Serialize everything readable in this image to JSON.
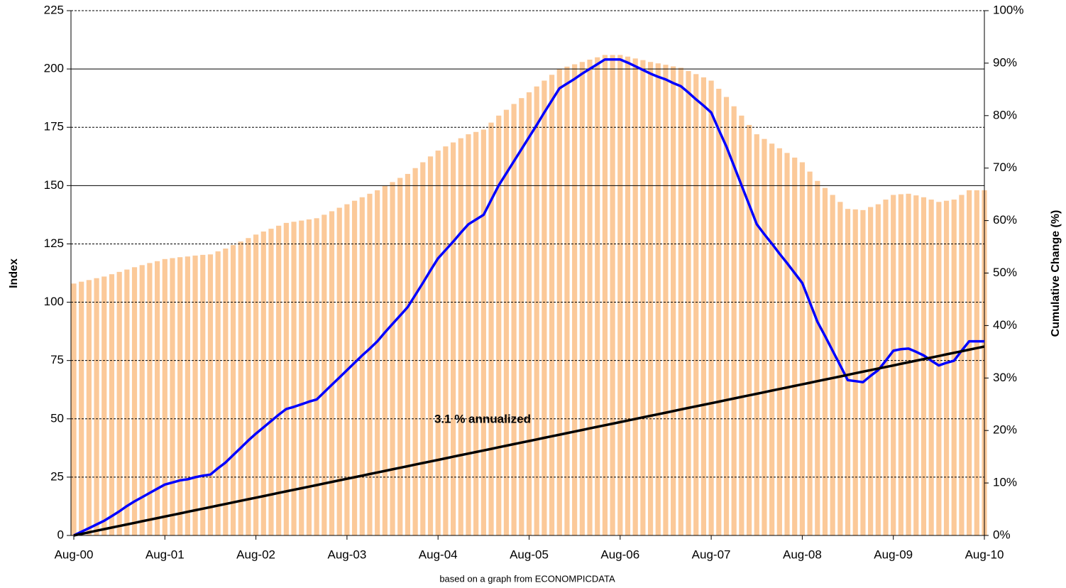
{
  "chart_data": {
    "type": "bar",
    "y_label": "Index",
    "y2_label": "Cumulative Change (%)",
    "note": "based on a graph from ECONOMPICDATA",
    "annotation": "3.1 % annualized",
    "categories": [
      "Aug-00",
      null,
      null,
      null,
      null,
      null,
      null,
      null,
      null,
      null,
      null,
      null,
      "Aug-01",
      null,
      null,
      null,
      null,
      null,
      null,
      null,
      null,
      null,
      null,
      null,
      "Aug-02",
      null,
      null,
      null,
      null,
      null,
      null,
      null,
      null,
      null,
      null,
      null,
      "Aug-03",
      null,
      null,
      null,
      null,
      null,
      null,
      null,
      null,
      null,
      null,
      null,
      "Aug-04",
      null,
      null,
      null,
      null,
      null,
      null,
      null,
      null,
      null,
      null,
      null,
      "Aug-05",
      null,
      null,
      null,
      null,
      null,
      null,
      null,
      null,
      null,
      null,
      null,
      "Aug-06",
      null,
      null,
      null,
      null,
      null,
      null,
      null,
      null,
      null,
      null,
      null,
      "Aug-07",
      null,
      null,
      null,
      null,
      null,
      null,
      null,
      null,
      null,
      null,
      null,
      "Aug-08",
      null,
      null,
      null,
      null,
      null,
      null,
      null,
      null,
      null,
      null,
      null,
      "Aug-09",
      null,
      null,
      null,
      null,
      null,
      null,
      null,
      null,
      null,
      null,
      null,
      "Aug-10"
    ],
    "ylim": [
      0,
      225
    ],
    "yticks": [
      0,
      25,
      50,
      75,
      100,
      125,
      150,
      175,
      200,
      225
    ],
    "y2lim": [
      0,
      100
    ],
    "y2ticks": [
      {
        "value": 0,
        "label": "0%"
      },
      {
        "value": 10,
        "label": "10%"
      },
      {
        "value": 20,
        "label": "20%"
      },
      {
        "value": 30,
        "label": "30%"
      },
      {
        "value": 40,
        "label": "40%"
      },
      {
        "value": 50,
        "label": "50%"
      },
      {
        "value": 60,
        "label": "60%"
      },
      {
        "value": 70,
        "label": "70%"
      },
      {
        "value": 80,
        "label": "80%"
      },
      {
        "value": 90,
        "label": "90%"
      },
      {
        "value": 100,
        "label": "100%"
      }
    ],
    "grid": true,
    "series": [
      {
        "type": "bar",
        "color": "#fbc999",
        "values": [
          108,
          108.8,
          109.5,
          110.3,
          111,
          112,
          113,
          114,
          115,
          115.9,
          116.8,
          117.6,
          118.5,
          118.9,
          119.3,
          119.6,
          120,
          120.3,
          120.5,
          121.8,
          123,
          124.5,
          126,
          127.5,
          129,
          130.3,
          131.5,
          132.8,
          134,
          134.5,
          135,
          135.5,
          136,
          137.5,
          139,
          140.5,
          142,
          143.5,
          145,
          146.5,
          148,
          149.8,
          151.5,
          153.3,
          155,
          157.5,
          160,
          162.5,
          165,
          166.8,
          168.5,
          170.3,
          172,
          173,
          174,
          177,
          180,
          182.5,
          185,
          187.5,
          190,
          192.5,
          195,
          197.5,
          200,
          201,
          202,
          203,
          204,
          205,
          206,
          206,
          206,
          205.3,
          204.5,
          203.8,
          203,
          202.4,
          201.8,
          201.1,
          200.5,
          199.1,
          197.8,
          196.4,
          195,
          191.5,
          188,
          184,
          180,
          176,
          172,
          170,
          168,
          166,
          164,
          162,
          160,
          156,
          152,
          149,
          146,
          143,
          140,
          139.8,
          139.5,
          140.8,
          142,
          144,
          146,
          146.3,
          146.5,
          145.8,
          145,
          144,
          143,
          143.5,
          144,
          146,
          148,
          148,
          148
        ]
      },
      {
        "type": "line",
        "axis": "y2",
        "color": "#0000ff",
        "values": [
          0,
          0.7,
          1.4,
          2.1,
          2.8,
          3.7,
          4.6,
          5.6,
          6.5,
          7.3,
          8.1,
          8.9,
          9.7,
          10.1,
          10.5,
          10.7,
          11.1,
          11.4,
          11.6,
          12.8,
          13.9,
          15.3,
          16.7,
          18.1,
          19.4,
          20.6,
          21.8,
          23.0,
          24.1,
          24.5,
          25.0,
          25.5,
          25.9,
          27.3,
          28.7,
          30.1,
          31.5,
          32.9,
          34.3,
          35.6,
          37.0,
          38.7,
          40.3,
          41.9,
          43.5,
          45.8,
          48.1,
          50.5,
          52.8,
          54.4,
          56.0,
          57.7,
          59.3,
          60.2,
          61.1,
          63.9,
          66.7,
          69.0,
          71.3,
          73.6,
          75.9,
          78.2,
          80.6,
          82.9,
          85.2,
          86.1,
          87.0,
          88.0,
          88.9,
          89.8,
          90.7,
          90.7,
          90.7,
          90.1,
          89.4,
          88.7,
          88.0,
          87.4,
          86.9,
          86.2,
          85.6,
          84.4,
          83.1,
          81.9,
          80.6,
          77.3,
          74.1,
          70.4,
          66.7,
          63.0,
          59.3,
          57.4,
          55.6,
          53.7,
          51.9,
          50.0,
          48.1,
          44.4,
          40.7,
          38.0,
          35.2,
          32.4,
          29.6,
          29.4,
          29.2,
          30.4,
          31.5,
          33.3,
          35.2,
          35.5,
          35.6,
          35.0,
          34.3,
          33.3,
          32.4,
          32.9,
          33.3,
          35.2,
          37.0,
          37.0,
          37.0
        ]
      },
      {
        "type": "line",
        "axis": "y2",
        "color": "#000000",
        "values": [
          0,
          0.3,
          0.6,
          0.9,
          1.2,
          1.5,
          1.8,
          2.1,
          2.4,
          2.7,
          3,
          3.3,
          3.6,
          3.9,
          4.2,
          4.5,
          4.8,
          5.1,
          5.4,
          5.7,
          6,
          6.3,
          6.6,
          6.9,
          7.2,
          7.5,
          7.8,
          8.1,
          8.4,
          8.7,
          9,
          9.3,
          9.6,
          9.9,
          10.2,
          10.5,
          10.8,
          11.1,
          11.4,
          11.7,
          12,
          12.3,
          12.6,
          12.9,
          13.2,
          13.5,
          13.8,
          14.1,
          14.4,
          14.7,
          15,
          15.3,
          15.6,
          15.9,
          16.2,
          16.5,
          16.8,
          17.1,
          17.4,
          17.7,
          18,
          18.3,
          18.6,
          18.9,
          19.2,
          19.5,
          19.8,
          20.1,
          20.4,
          20.7,
          21,
          21.3,
          21.6,
          21.9,
          22.2,
          22.5,
          22.8,
          23.1,
          23.4,
          23.7,
          24,
          24.3,
          24.6,
          24.9,
          25.2,
          25.5,
          25.8,
          26.1,
          26.4,
          26.7,
          27,
          27.3,
          27.6,
          27.9,
          28.2,
          28.5,
          28.8,
          29.1,
          29.4,
          29.7,
          30,
          30.3,
          30.6,
          30.9,
          31.2,
          31.5,
          31.8,
          32.1,
          32.4,
          32.7,
          33,
          33.3,
          33.6,
          33.9,
          34.2,
          34.5,
          34.8,
          35.1,
          35.4,
          35.7,
          36
        ]
      }
    ]
  }
}
